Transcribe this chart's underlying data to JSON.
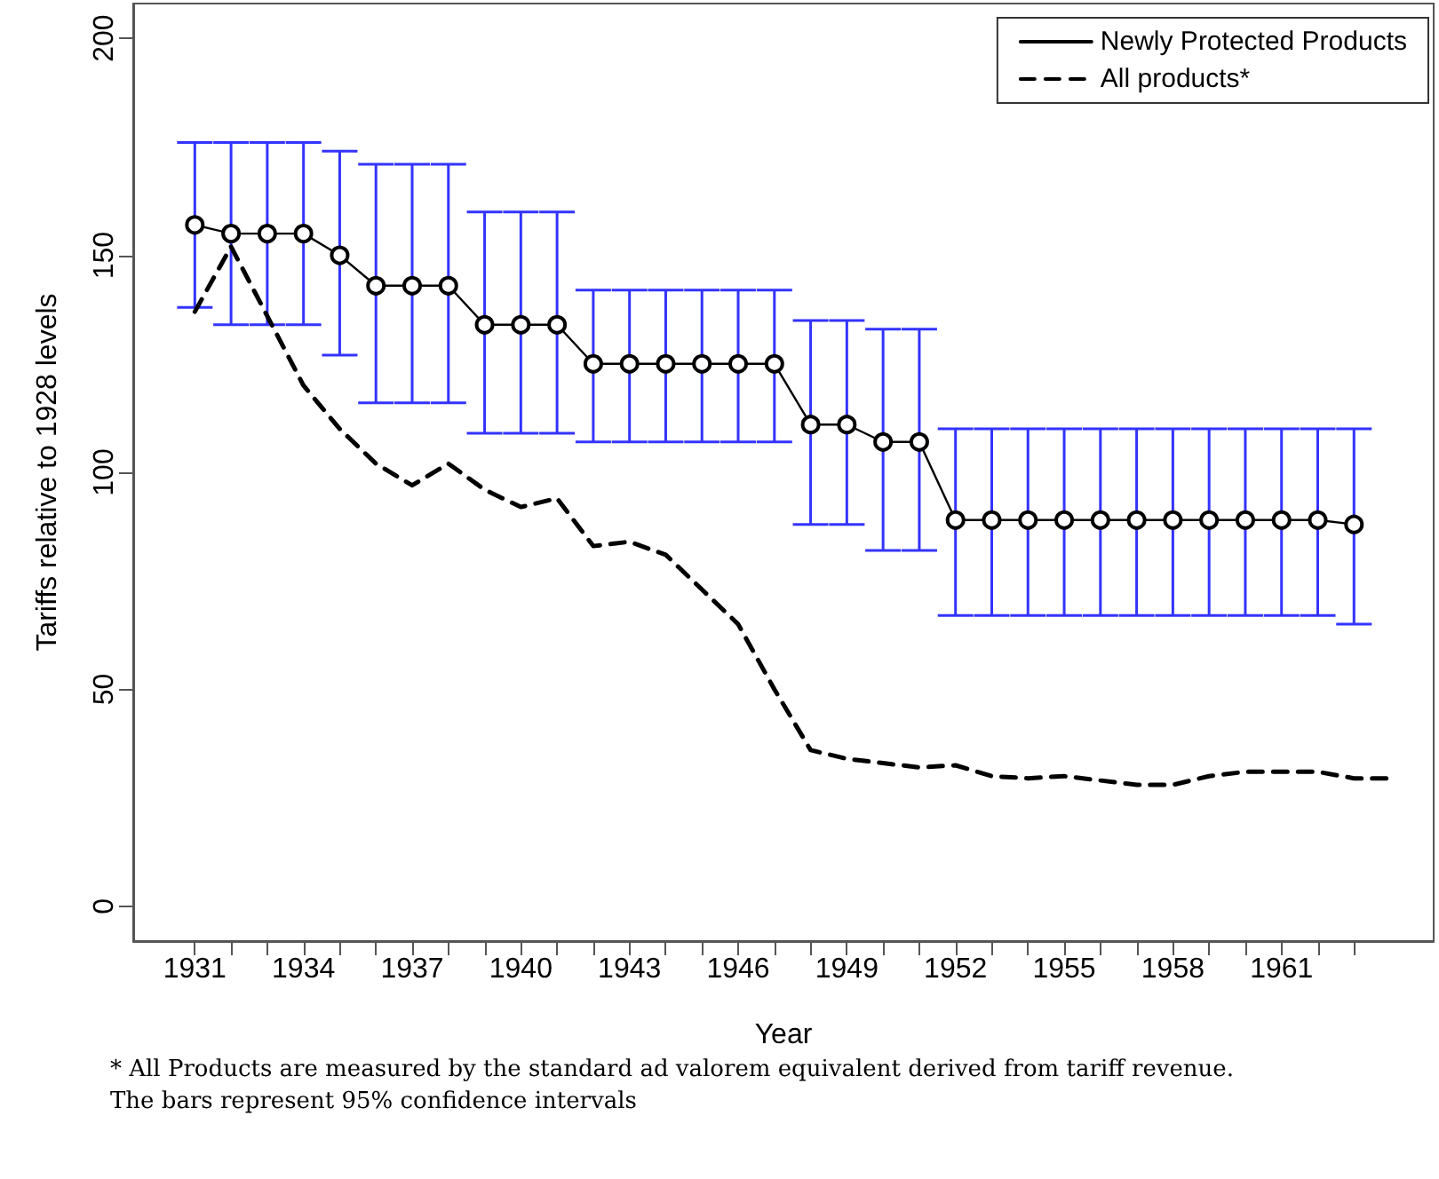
{
  "chart_data": {
    "type": "line",
    "xlabel": "Year",
    "ylabel": "Tariffs relative to 1928 levels",
    "annotations": [
      "* All Products are measured by the standard ad valorem equivalent derived from tariff revenue.",
      "The bars represent 95% confidence intervals"
    ],
    "xlim": [
      1929.3,
      1965.2
    ],
    "ylim": [
      -8,
      208
    ],
    "xticks": [
      1931,
      {
        "value": 1932,
        "label": null
      },
      {
        "value": 1933,
        "label": null
      },
      1934,
      {
        "value": 1935,
        "label": null
      },
      {
        "value": 1936,
        "label": null
      },
      1937,
      {
        "value": 1938,
        "label": null
      },
      {
        "value": 1939,
        "label": null
      },
      1940,
      {
        "value": 1941,
        "label": null
      },
      {
        "value": 1942,
        "label": null
      },
      1943,
      {
        "value": 1944,
        "label": null
      },
      {
        "value": 1945,
        "label": null
      },
      1946,
      {
        "value": 1947,
        "label": null
      },
      {
        "value": 1948,
        "label": null
      },
      1949,
      {
        "value": 1950,
        "label": null
      },
      {
        "value": 1951,
        "label": null
      },
      1952,
      {
        "value": 1953,
        "label": null
      },
      {
        "value": 1954,
        "label": null
      },
      1955,
      {
        "value": 1956,
        "label": null
      },
      {
        "value": 1957,
        "label": null
      },
      1958,
      {
        "value": 1959,
        "label": null
      },
      {
        "value": 1960,
        "label": null
      },
      1961,
      {
        "value": 1962,
        "label": null
      },
      {
        "value": 1963,
        "label": null
      }
    ],
    "yticks": [
      0,
      50,
      100,
      150,
      200
    ],
    "grid": false,
    "legend": "top right",
    "series": [
      {
        "name": "Newly Protected Products",
        "color": "#000000",
        "marker": "circle",
        "line_style": "solid",
        "x": [
          1931,
          1932,
          1933,
          1934,
          1935,
          1936,
          1937,
          1938,
          1939,
          1940,
          1941,
          1942,
          1943,
          1944,
          1945,
          1946,
          1947,
          1948,
          1949,
          1950,
          1951,
          1952,
          1953,
          1954,
          1955,
          1956,
          1957,
          1958,
          1959,
          1960,
          1961,
          1962,
          1963
        ],
        "values": [
          157,
          155,
          155,
          155,
          150,
          143,
          143,
          143,
          134,
          134,
          134,
          125,
          125,
          125,
          125,
          125,
          125,
          111,
          111,
          107,
          107,
          89,
          89,
          89,
          89,
          89,
          89,
          89,
          89,
          89,
          89,
          89,
          88
        ],
        "errors": [
          [
            138,
            176
          ],
          [
            134,
            176
          ],
          [
            134,
            176
          ],
          [
            134,
            176
          ],
          [
            127,
            174
          ],
          [
            116,
            171
          ],
          [
            116,
            171
          ],
          [
            116,
            171
          ],
          [
            109,
            160
          ],
          [
            109,
            160
          ],
          [
            109,
            160
          ],
          [
            107,
            142
          ],
          [
            107,
            142
          ],
          [
            107,
            142
          ],
          [
            107,
            142
          ],
          [
            107,
            142
          ],
          [
            107,
            142
          ],
          [
            88,
            135
          ],
          [
            88,
            135
          ],
          [
            82,
            133
          ],
          [
            82,
            133
          ],
          [
            67,
            110
          ],
          [
            67,
            110
          ],
          [
            67,
            110
          ],
          [
            67,
            110
          ],
          [
            67,
            110
          ],
          [
            67,
            110
          ],
          [
            67,
            110
          ],
          [
            67,
            110
          ],
          [
            67,
            110
          ],
          [
            67,
            110
          ],
          [
            67,
            110
          ],
          [
            65,
            110
          ]
        ]
      },
      {
        "name": "All products*",
        "color": "#000000",
        "marker": "none",
        "line_style": "dashed",
        "x": [
          1931,
          1932,
          1933,
          1934,
          1935,
          1936,
          1937,
          1938,
          1939,
          1940,
          1941,
          1942,
          1943,
          1944,
          1945,
          1946,
          1947,
          1948,
          1949,
          1950,
          1951,
          1952,
          1953,
          1954,
          1955,
          1956,
          1957,
          1958,
          1959,
          1960,
          1961,
          1962,
          1963,
          1964
        ],
        "values": [
          137,
          152,
          136,
          120,
          110,
          102,
          97,
          102,
          96,
          92,
          94,
          83,
          84,
          81,
          73,
          65,
          50,
          36,
          34,
          33,
          32,
          32.5,
          30,
          29.5,
          30,
          29,
          28,
          28,
          30,
          31,
          31,
          31,
          29.5,
          29.5
        ]
      }
    ]
  }
}
